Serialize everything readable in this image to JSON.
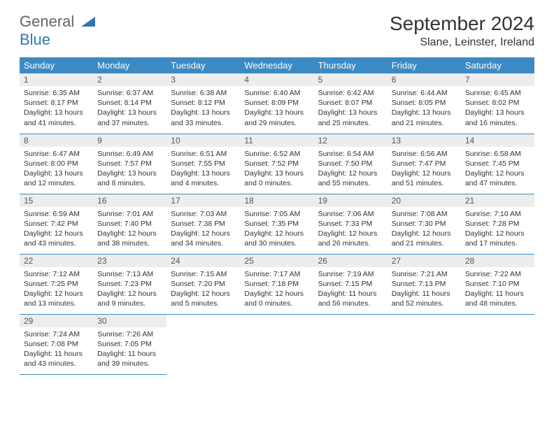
{
  "logo": {
    "line1": "General",
    "line2": "Blue"
  },
  "title": "September 2024",
  "location": "Slane, Leinster, Ireland",
  "colors": {
    "header_bg": "#3b8ac4",
    "header_fg": "#ffffff",
    "daynum_bg": "#ededed",
    "row_border": "#3b8ac4",
    "logo_accent": "#2f77b6"
  },
  "weekdays": [
    "Sunday",
    "Monday",
    "Tuesday",
    "Wednesday",
    "Thursday",
    "Friday",
    "Saturday"
  ],
  "days": [
    {
      "n": "1",
      "sr": "Sunrise: 6:35 AM",
      "ss": "Sunset: 8:17 PM",
      "dl1": "Daylight: 13 hours",
      "dl2": "and 41 minutes."
    },
    {
      "n": "2",
      "sr": "Sunrise: 6:37 AM",
      "ss": "Sunset: 8:14 PM",
      "dl1": "Daylight: 13 hours",
      "dl2": "and 37 minutes."
    },
    {
      "n": "3",
      "sr": "Sunrise: 6:38 AM",
      "ss": "Sunset: 8:12 PM",
      "dl1": "Daylight: 13 hours",
      "dl2": "and 33 minutes."
    },
    {
      "n": "4",
      "sr": "Sunrise: 6:40 AM",
      "ss": "Sunset: 8:09 PM",
      "dl1": "Daylight: 13 hours",
      "dl2": "and 29 minutes."
    },
    {
      "n": "5",
      "sr": "Sunrise: 6:42 AM",
      "ss": "Sunset: 8:07 PM",
      "dl1": "Daylight: 13 hours",
      "dl2": "and 25 minutes."
    },
    {
      "n": "6",
      "sr": "Sunrise: 6:44 AM",
      "ss": "Sunset: 8:05 PM",
      "dl1": "Daylight: 13 hours",
      "dl2": "and 21 minutes."
    },
    {
      "n": "7",
      "sr": "Sunrise: 6:45 AM",
      "ss": "Sunset: 8:02 PM",
      "dl1": "Daylight: 13 hours",
      "dl2": "and 16 minutes."
    },
    {
      "n": "8",
      "sr": "Sunrise: 6:47 AM",
      "ss": "Sunset: 8:00 PM",
      "dl1": "Daylight: 13 hours",
      "dl2": "and 12 minutes."
    },
    {
      "n": "9",
      "sr": "Sunrise: 6:49 AM",
      "ss": "Sunset: 7:57 PM",
      "dl1": "Daylight: 13 hours",
      "dl2": "and 8 minutes."
    },
    {
      "n": "10",
      "sr": "Sunrise: 6:51 AM",
      "ss": "Sunset: 7:55 PM",
      "dl1": "Daylight: 13 hours",
      "dl2": "and 4 minutes."
    },
    {
      "n": "11",
      "sr": "Sunrise: 6:52 AM",
      "ss": "Sunset: 7:52 PM",
      "dl1": "Daylight: 13 hours",
      "dl2": "and 0 minutes."
    },
    {
      "n": "12",
      "sr": "Sunrise: 6:54 AM",
      "ss": "Sunset: 7:50 PM",
      "dl1": "Daylight: 12 hours",
      "dl2": "and 55 minutes."
    },
    {
      "n": "13",
      "sr": "Sunrise: 6:56 AM",
      "ss": "Sunset: 7:47 PM",
      "dl1": "Daylight: 12 hours",
      "dl2": "and 51 minutes."
    },
    {
      "n": "14",
      "sr": "Sunrise: 6:58 AM",
      "ss": "Sunset: 7:45 PM",
      "dl1": "Daylight: 12 hours",
      "dl2": "and 47 minutes."
    },
    {
      "n": "15",
      "sr": "Sunrise: 6:59 AM",
      "ss": "Sunset: 7:42 PM",
      "dl1": "Daylight: 12 hours",
      "dl2": "and 43 minutes."
    },
    {
      "n": "16",
      "sr": "Sunrise: 7:01 AM",
      "ss": "Sunset: 7:40 PM",
      "dl1": "Daylight: 12 hours",
      "dl2": "and 38 minutes."
    },
    {
      "n": "17",
      "sr": "Sunrise: 7:03 AM",
      "ss": "Sunset: 7:38 PM",
      "dl1": "Daylight: 12 hours",
      "dl2": "and 34 minutes."
    },
    {
      "n": "18",
      "sr": "Sunrise: 7:05 AM",
      "ss": "Sunset: 7:35 PM",
      "dl1": "Daylight: 12 hours",
      "dl2": "and 30 minutes."
    },
    {
      "n": "19",
      "sr": "Sunrise: 7:06 AM",
      "ss": "Sunset: 7:33 PM",
      "dl1": "Daylight: 12 hours",
      "dl2": "and 26 minutes."
    },
    {
      "n": "20",
      "sr": "Sunrise: 7:08 AM",
      "ss": "Sunset: 7:30 PM",
      "dl1": "Daylight: 12 hours",
      "dl2": "and 21 minutes."
    },
    {
      "n": "21",
      "sr": "Sunrise: 7:10 AM",
      "ss": "Sunset: 7:28 PM",
      "dl1": "Daylight: 12 hours",
      "dl2": "and 17 minutes."
    },
    {
      "n": "22",
      "sr": "Sunrise: 7:12 AM",
      "ss": "Sunset: 7:25 PM",
      "dl1": "Daylight: 12 hours",
      "dl2": "and 13 minutes."
    },
    {
      "n": "23",
      "sr": "Sunrise: 7:13 AM",
      "ss": "Sunset: 7:23 PM",
      "dl1": "Daylight: 12 hours",
      "dl2": "and 9 minutes."
    },
    {
      "n": "24",
      "sr": "Sunrise: 7:15 AM",
      "ss": "Sunset: 7:20 PM",
      "dl1": "Daylight: 12 hours",
      "dl2": "and 5 minutes."
    },
    {
      "n": "25",
      "sr": "Sunrise: 7:17 AM",
      "ss": "Sunset: 7:18 PM",
      "dl1": "Daylight: 12 hours",
      "dl2": "and 0 minutes."
    },
    {
      "n": "26",
      "sr": "Sunrise: 7:19 AM",
      "ss": "Sunset: 7:15 PM",
      "dl1": "Daylight: 11 hours",
      "dl2": "and 56 minutes."
    },
    {
      "n": "27",
      "sr": "Sunrise: 7:21 AM",
      "ss": "Sunset: 7:13 PM",
      "dl1": "Daylight: 11 hours",
      "dl2": "and 52 minutes."
    },
    {
      "n": "28",
      "sr": "Sunrise: 7:22 AM",
      "ss": "Sunset: 7:10 PM",
      "dl1": "Daylight: 11 hours",
      "dl2": "and 48 minutes."
    },
    {
      "n": "29",
      "sr": "Sunrise: 7:24 AM",
      "ss": "Sunset: 7:08 PM",
      "dl1": "Daylight: 11 hours",
      "dl2": "and 43 minutes."
    },
    {
      "n": "30",
      "sr": "Sunrise: 7:26 AM",
      "ss": "Sunset: 7:05 PM",
      "dl1": "Daylight: 11 hours",
      "dl2": "and 39 minutes."
    }
  ]
}
